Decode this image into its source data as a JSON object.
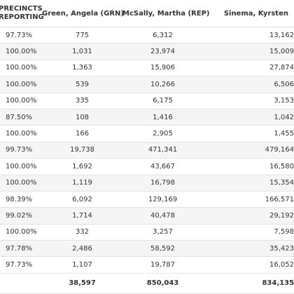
{
  "table": {
    "headers": {
      "precincts": "PRECINCTS REPORTING",
      "green": "Green, Angela (GRN)",
      "mcsally": "McSally, Martha (REP)",
      "sinema": "Sinema, Kyrsten"
    },
    "rows": [
      {
        "pct": "97.73%",
        "grn": "775",
        "rep": "6,312",
        "sin": "13,162"
      },
      {
        "pct": "100.00%",
        "grn": "1,031",
        "rep": "23,974",
        "sin": "15,009"
      },
      {
        "pct": "100.00%",
        "grn": "1,363",
        "rep": "15,906",
        "sin": "27,874"
      },
      {
        "pct": "100.00%",
        "grn": "539",
        "rep": "10,266",
        "sin": "6,506"
      },
      {
        "pct": "100.00%",
        "grn": "335",
        "rep": "6,175",
        "sin": "3,153"
      },
      {
        "pct": "87.50%",
        "grn": "108",
        "rep": "1,416",
        "sin": "1,042"
      },
      {
        "pct": "100.00%",
        "grn": "166",
        "rep": "2,905",
        "sin": "1,455"
      },
      {
        "pct": "99.73%",
        "grn": "19,738",
        "rep": "471,341",
        "sin": "479,164"
      },
      {
        "pct": "100.00%",
        "grn": "1,692",
        "rep": "43,667",
        "sin": "16,580"
      },
      {
        "pct": "100.00%",
        "grn": "1,119",
        "rep": "16,798",
        "sin": "15,354"
      },
      {
        "pct": "98.39%",
        "grn": "6,092",
        "rep": "129,169",
        "sin": "166,571"
      },
      {
        "pct": "99.02%",
        "grn": "1,714",
        "rep": "40,478",
        "sin": "29,192"
      },
      {
        "pct": "100.00%",
        "grn": "332",
        "rep": "3,257",
        "sin": "7,598"
      },
      {
        "pct": "97.78%",
        "grn": "2,486",
        "rep": "58,592",
        "sin": "35,423"
      },
      {
        "pct": "97.73%",
        "grn": "1,107",
        "rep": "19,787",
        "sin": "16,052"
      }
    ],
    "totals": {
      "pct": "",
      "grn": "38,597",
      "rep": "850,043",
      "sin": "834,135"
    }
  }
}
